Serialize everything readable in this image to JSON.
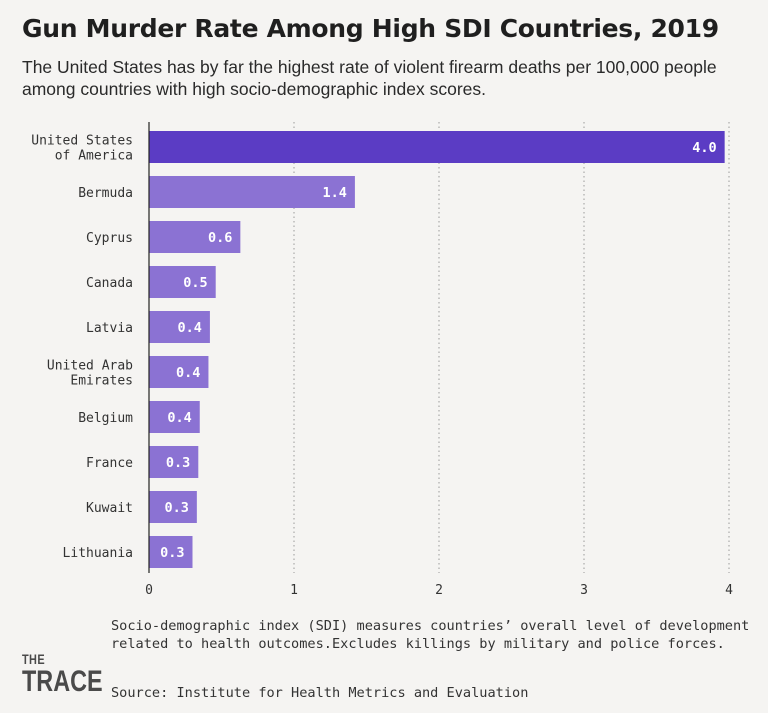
{
  "header": {
    "title": "Gun Murder Rate Among High SDI Countries, 2019",
    "subtitle": "The United States has by far the highest rate of violent firearm deaths per 100,000 people among countries with high socio-demographic index scores."
  },
  "footer": {
    "note": "Socio-demographic index (SDI) measures countries’ overall level of development related to health outcomes.Excludes killings by military and police forces.",
    "source": "Source: Institute for Health Metrics and Evaluation",
    "logo_line1": "THE",
    "logo_line2": "TRACE"
  },
  "colors": {
    "bar_highlight": "#5b3cc4",
    "bar": "#8b72d3",
    "grid": "#9a9a9a",
    "bar_label": "#ffffff"
  },
  "chart_data": {
    "type": "bar",
    "orientation": "horizontal",
    "categories": [
      [
        "United States",
        "of America"
      ],
      [
        "Bermuda"
      ],
      [
        "Cyprus"
      ],
      [
        "Canada"
      ],
      [
        "Latvia"
      ],
      [
        "United Arab",
        "Emirates"
      ],
      [
        "Belgium"
      ],
      [
        "France"
      ],
      [
        "Kuwait"
      ],
      [
        "Lithuania"
      ]
    ],
    "values": [
      3.97,
      1.42,
      0.63,
      0.46,
      0.42,
      0.41,
      0.35,
      0.34,
      0.33,
      0.3
    ],
    "labels": [
      "4.0",
      "1.4",
      "0.6",
      "0.5",
      "0.4",
      "0.4",
      "0.4",
      "0.3",
      "0.3",
      "0.3"
    ],
    "xlim": [
      0,
      4
    ],
    "xticks": [
      0,
      1,
      2,
      3,
      4
    ],
    "grid": true,
    "highlight_index": 0
  }
}
